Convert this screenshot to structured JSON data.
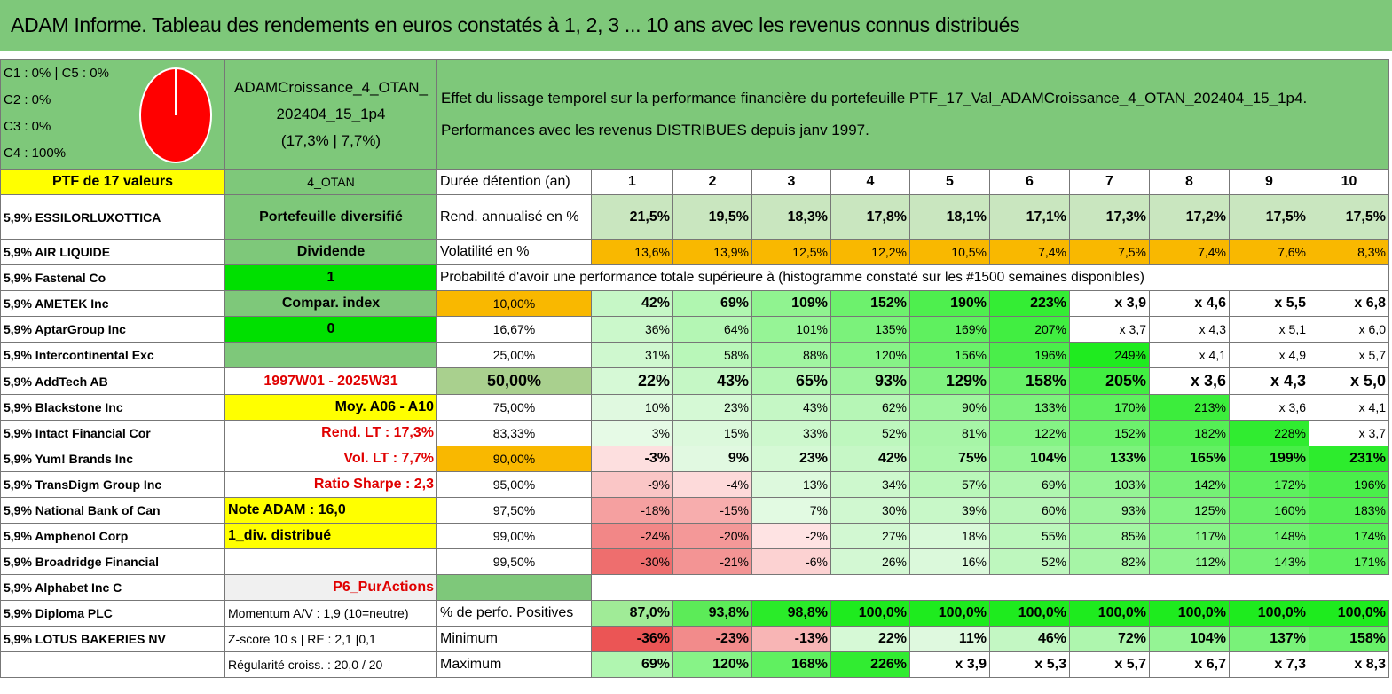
{
  "title": "ADAM Informe. Tableau des rendements en euros constatés à 1, 2, 3 ... 10 ans avec les revenus connus distribués",
  "colors": {
    "green": "#7ec87a",
    "yellow": "#ffff00",
    "bright_green": "#00e000",
    "orange": "#f9b800",
    "red": "#e00000"
  },
  "classes": {
    "line1": "C1 : 0% | C5 : 0%",
    "line2": "C2 : 0%",
    "line3": "C3 : 0%",
    "line4": "C4 : 100%",
    "pie": [
      {
        "label": "C4",
        "value": 100
      }
    ]
  },
  "portfolio": {
    "name1": "ADAMCroissance_4_OTAN_",
    "name2": "202404_15_1p4",
    "stats": "(17,3% | 7,7%)"
  },
  "description": {
    "line1": "Effet du lissage temporel sur la performance financière du portefeuille PTF_17_Val_ADAMCroissance_4_OTAN_202404_15_1p4.",
    "line2": "Performances avec les revenus DISTRIBUES depuis janv 1997."
  },
  "ptf_label": "PTF de 17 valeurs",
  "otan_label": "4_OTAN",
  "duration_label": "Durée détention (an)",
  "years": [
    "1",
    "2",
    "3",
    "4",
    "5",
    "6",
    "7",
    "8",
    "9",
    "10"
  ],
  "holdings": [
    "5,9% ESSILORLUXOTTICA",
    "5,9% AIR LIQUIDE",
    "5,9% Fastenal Co",
    "5,9% AMETEK Inc",
    "5,9% AptarGroup Inc",
    "5,9% Intercontinental Exc",
    "5,9% AddTech AB",
    "5,9% Blackstone Inc",
    "5,9% Intact Financial Cor",
    "5,9% Yum! Brands Inc",
    "5,9% TransDigm Group Inc",
    "5,9% National Bank of Can",
    "5,9% Amphenol Corp",
    "5,9% Broadridge Financial",
    "5,9% Alphabet Inc C",
    "5,9% Diploma PLC",
    "5,9% LOTUS BAKERIES NV"
  ],
  "info": [
    "Portefeuille diversifié",
    "Dividende",
    "1",
    "Compar. index",
    "0",
    "",
    "1997W01 - 2025W31",
    "Moy. A06 - A10",
    "Rend. LT : 17,3%",
    "Vol. LT : 7,7%",
    "Ratio Sharpe : 2,3",
    "Note ADAM : 16,0",
    "1_div. distribué",
    "",
    "P6_PurActions",
    "Momentum A/V : 1,9 (10=neutre)",
    "Z-score 10 s | RE : 2,1 |0,1",
    "Régularité croiss. : 20,0 / 20"
  ],
  "rend_label": "Rend. annualisé en %",
  "rend": [
    "21,5%",
    "19,5%",
    "18,3%",
    "17,8%",
    "18,1%",
    "17,1%",
    "17,3%",
    "17,2%",
    "17,5%",
    "17,5%"
  ],
  "vol_label": "Volatilité en %",
  "vol": [
    "13,6%",
    "13,9%",
    "12,5%",
    "12,2%",
    "10,5%",
    "7,4%",
    "7,5%",
    "7,4%",
    "7,6%",
    "8,3%"
  ],
  "prob_label": "Probabilité d'avoir une performance totale supérieure à (histogramme constaté sur les #1500 semaines disponibles)",
  "prob_rows": [
    {
      "p": "10,00%",
      "v": [
        "42%",
        "69%",
        "109%",
        "152%",
        "190%",
        "223%",
        "x 3,9",
        "x 4,6",
        "x 5,5",
        "x 6,8"
      ]
    },
    {
      "p": "16,67%",
      "v": [
        "36%",
        "64%",
        "101%",
        "135%",
        "169%",
        "207%",
        "x 3,7",
        "x 4,3",
        "x 5,1",
        "x 6,0"
      ]
    },
    {
      "p": "25,00%",
      "v": [
        "31%",
        "58%",
        "88%",
        "120%",
        "156%",
        "196%",
        "249%",
        "x 4,1",
        "x 4,9",
        "x 5,7"
      ]
    },
    {
      "p": "50,00%",
      "v": [
        "22%",
        "43%",
        "65%",
        "93%",
        "129%",
        "158%",
        "205%",
        "x 3,6",
        "x 4,3",
        "x 5,0"
      ]
    },
    {
      "p": "75,00%",
      "v": [
        "10%",
        "23%",
        "43%",
        "62%",
        "90%",
        "133%",
        "170%",
        "213%",
        "x 3,6",
        "x 4,1"
      ]
    },
    {
      "p": "83,33%",
      "v": [
        "3%",
        "15%",
        "33%",
        "52%",
        "81%",
        "122%",
        "152%",
        "182%",
        "228%",
        "x 3,7"
      ]
    },
    {
      "p": "90,00%",
      "v": [
        "-3%",
        "9%",
        "23%",
        "42%",
        "75%",
        "104%",
        "133%",
        "165%",
        "199%",
        "231%"
      ]
    },
    {
      "p": "95,00%",
      "v": [
        "-9%",
        "-4%",
        "13%",
        "34%",
        "57%",
        "69%",
        "103%",
        "142%",
        "172%",
        "196%"
      ]
    },
    {
      "p": "97,50%",
      "v": [
        "-18%",
        "-15%",
        "7%",
        "30%",
        "39%",
        "60%",
        "93%",
        "125%",
        "160%",
        "183%"
      ]
    },
    {
      "p": "99,00%",
      "v": [
        "-24%",
        "-20%",
        "-2%",
        "27%",
        "18%",
        "55%",
        "85%",
        "117%",
        "148%",
        "174%"
      ]
    },
    {
      "p": "99,50%",
      "v": [
        "-30%",
        "-21%",
        "-6%",
        "26%",
        "16%",
        "52%",
        "82%",
        "112%",
        "143%",
        "171%"
      ]
    }
  ],
  "pos_label": "% de perfo. Positives",
  "pos": [
    "87,0%",
    "93,8%",
    "98,8%",
    "100,0%",
    "100,0%",
    "100,0%",
    "100,0%",
    "100,0%",
    "100,0%",
    "100,0%"
  ],
  "min_label": "Minimum",
  "min": [
    "-36%",
    "-23%",
    "-13%",
    "22%",
    "11%",
    "46%",
    "72%",
    "104%",
    "137%",
    "158%"
  ],
  "max_label": "Maximum",
  "max": [
    "69%",
    "120%",
    "168%",
    "226%",
    "x 3,9",
    "x 5,3",
    "x 5,7",
    "x 6,7",
    "x 7,3",
    "x 8,3"
  ]
}
